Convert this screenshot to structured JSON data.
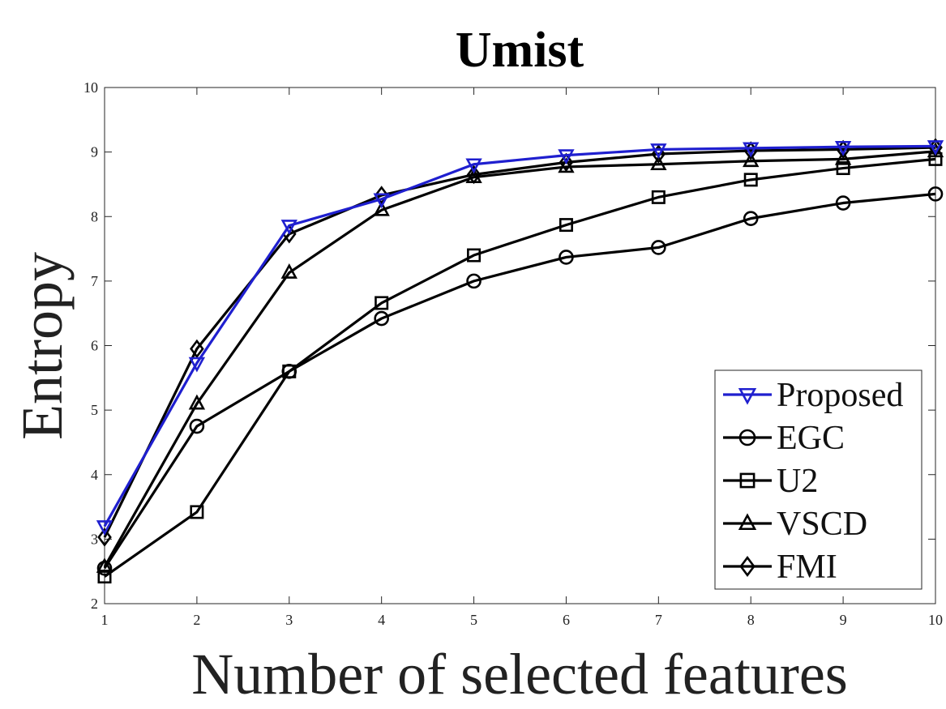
{
  "chart_data": {
    "type": "line",
    "title": "Umist",
    "xlabel": "Number of selected features",
    "ylabel": "Entropy",
    "x": [
      1,
      2,
      3,
      4,
      5,
      6,
      7,
      8,
      9,
      10
    ],
    "xlim": [
      1,
      10
    ],
    "ylim": [
      2,
      10
    ],
    "xticks": [
      1,
      2,
      3,
      4,
      5,
      6,
      7,
      8,
      9,
      10
    ],
    "yticks": [
      2,
      3,
      4,
      5,
      6,
      7,
      8,
      9,
      10
    ],
    "grid": false,
    "legend_position": "bottom-right",
    "series": [
      {
        "name": "Proposed",
        "marker": "triangle-down",
        "color": "#1f1fcf",
        "values": [
          3.2,
          5.73,
          7.86,
          8.27,
          8.81,
          8.95,
          9.04,
          9.06,
          9.08,
          9.09
        ]
      },
      {
        "name": "EGC",
        "marker": "circle",
        "color": "#000000",
        "values": [
          2.55,
          4.75,
          5.6,
          6.42,
          7.0,
          7.37,
          7.52,
          7.97,
          8.21,
          8.35
        ]
      },
      {
        "name": "U2",
        "marker": "square",
        "color": "#000000",
        "values": [
          2.42,
          3.42,
          5.6,
          6.66,
          7.4,
          7.87,
          8.3,
          8.57,
          8.75,
          8.89
        ]
      },
      {
        "name": "VSCD",
        "marker": "triangle-up",
        "color": "#000000",
        "values": [
          2.57,
          5.1,
          7.13,
          8.1,
          8.61,
          8.77,
          8.81,
          8.86,
          8.89,
          9.01
        ]
      },
      {
        "name": "FMI",
        "marker": "diamond",
        "color": "#000000",
        "values": [
          3.03,
          5.95,
          7.73,
          8.33,
          8.65,
          8.84,
          8.97,
          9.02,
          9.04,
          9.07
        ]
      }
    ]
  }
}
